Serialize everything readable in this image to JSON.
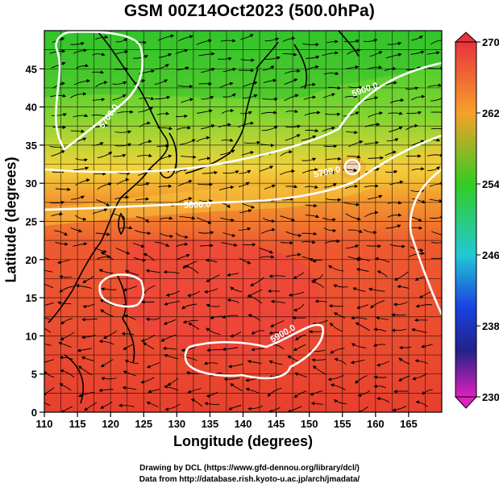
{
  "header": {
    "title": "GSM 00Z14Oct2023 (500.0hPa)"
  },
  "axes": {
    "xlabel": "Longitude (degrees)",
    "ylabel": "Latitude  (degrees)",
    "x_ticks": [
      "110",
      "115",
      "120",
      "125",
      "130",
      "135",
      "140",
      "145",
      "150",
      "155",
      "160",
      "165"
    ],
    "y_ticks": [
      "0",
      "5",
      "10",
      "15",
      "20",
      "25",
      "30",
      "35",
      "40",
      "45"
    ]
  },
  "colorbar": {
    "ticks": [
      "270",
      "262",
      "254",
      "246",
      "238",
      "230"
    ],
    "colors": {
      "top": "#e8323c",
      "orange": "#f7a02a",
      "green": "#33cc22",
      "cyan": "#22c8d4",
      "blue": "#1a40e0",
      "navy": "#222288",
      "magenta": "#e020c0"
    }
  },
  "contours": {
    "labels": [
      "5700.0",
      "5700.0",
      "5800.0",
      "5900.0",
      "5900.0"
    ]
  },
  "credits": {
    "line1": "Drawing by DCL (https://www.gfd-dennou.org/library/dcl/)",
    "line2": "Data from http://database.rish.kyoto-u.ac.jp/arch/jmadata/"
  },
  "chart_data": {
    "type": "heatmap",
    "title": "GSM 00Z14Oct2023 (500.0hPa)",
    "xlabel": "Longitude (degrees)",
    "ylabel": "Latitude  (degrees)",
    "xlim": [
      110,
      170
    ],
    "ylim": [
      0,
      50
    ],
    "colorbar_range": [
      230,
      270
    ],
    "colorbar_ticks": [
      270,
      262,
      254,
      246,
      238,
      230
    ],
    "contour_levels": [
      5700,
      5800,
      5900
    ],
    "grid": true
  }
}
